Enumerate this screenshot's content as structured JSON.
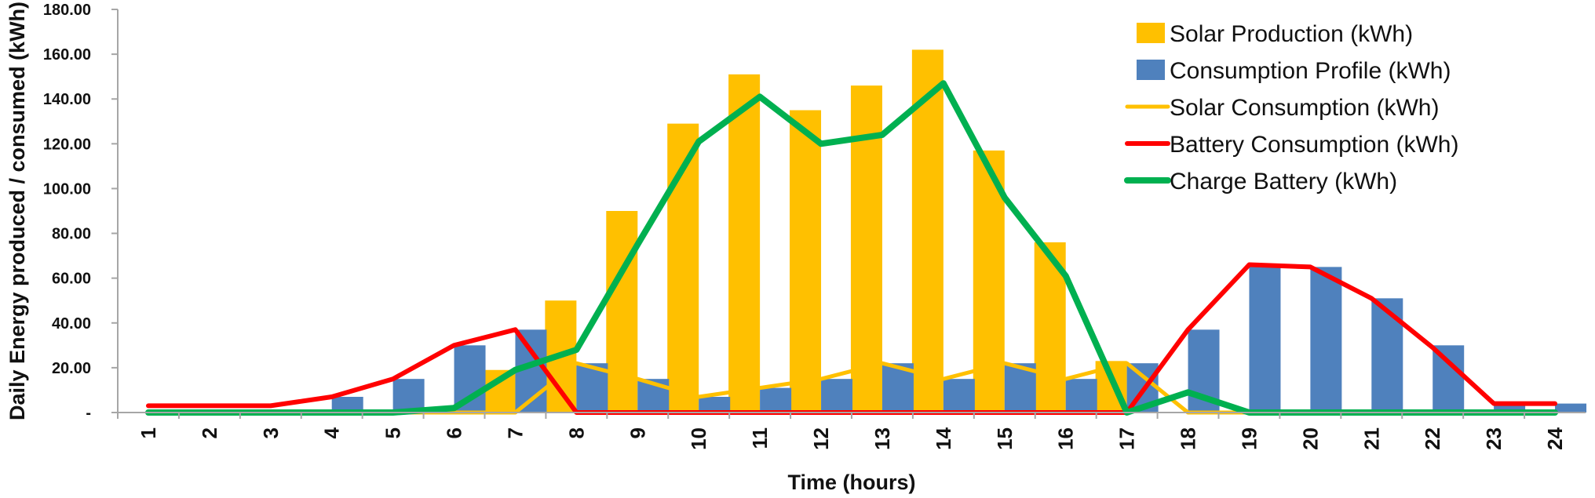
{
  "colors": {
    "solar_production": "#FFC000",
    "consumption_profile": "#4F81BD",
    "solar_consumption": "#FFC000",
    "battery_consumption": "#FF0000",
    "charge_battery": "#00B050",
    "axis": "#A6A6A6"
  },
  "chart_data": {
    "type": "bar",
    "title": "",
    "xlabel": "Time (hours)",
    "ylabel": "Daily Energy produced / consumed (kWh)",
    "ylim": [
      0,
      180
    ],
    "yticks": [
      {
        "value": 0,
        "label": "-"
      },
      {
        "value": 20,
        "label": "20.00"
      },
      {
        "value": 40,
        "label": "40.00"
      },
      {
        "value": 60,
        "label": "60.00"
      },
      {
        "value": 80,
        "label": "80.00"
      },
      {
        "value": 100,
        "label": "100.00"
      },
      {
        "value": 120,
        "label": "120.00"
      },
      {
        "value": 140,
        "label": "140.00"
      },
      {
        "value": 160,
        "label": "160.00"
      },
      {
        "value": 180,
        "label": "180.00"
      }
    ],
    "categories": [
      "1",
      "2",
      "3",
      "4",
      "5",
      "6",
      "7",
      "8",
      "9",
      "10",
      "11",
      "12",
      "13",
      "14",
      "15",
      "16",
      "17",
      "18",
      "19",
      "20",
      "21",
      "22",
      "23",
      "24"
    ],
    "grid": false,
    "legend_position": "top-right",
    "series": [
      {
        "name": "Solar Production (kWh)",
        "type": "bar",
        "color_key": "solar_production",
        "values": [
          0,
          0,
          0,
          0,
          0,
          0,
          19,
          50,
          90,
          129,
          151,
          135,
          146,
          162,
          117,
          76,
          23,
          0,
          0,
          0,
          0,
          0,
          0,
          0
        ]
      },
      {
        "name": "Consumption Profile (kWh)",
        "type": "bar",
        "color_key": "consumption_profile",
        "values": [
          1,
          1,
          1,
          7,
          15,
          30,
          37,
          22,
          15,
          7,
          11,
          15,
          22,
          15,
          22,
          15,
          22,
          37,
          66,
          65,
          51,
          30,
          4,
          4
        ]
      },
      {
        "name": "Solar Consumption (kWh)",
        "type": "line",
        "color_key": "solar_consumption",
        "values": [
          0,
          0,
          0,
          0,
          0,
          0,
          0,
          22,
          15,
          7,
          11,
          15,
          22,
          15,
          22,
          15,
          22,
          0,
          0,
          0,
          0,
          0,
          0,
          0
        ]
      },
      {
        "name": "Battery Consumption (kWh)",
        "type": "line",
        "color_key": "battery_consumption",
        "values": [
          3,
          3,
          3,
          7,
          15,
          30,
          37,
          0,
          0,
          0,
          0,
          0,
          0,
          0,
          0,
          0,
          0,
          37,
          66,
          65,
          51,
          29,
          4,
          4
        ]
      },
      {
        "name": "Charge Battery (kWh)",
        "type": "line",
        "color_key": "charge_battery",
        "values": [
          0,
          0,
          0,
          0,
          0,
          2,
          19,
          28,
          75,
          121,
          141,
          120,
          124,
          147,
          96,
          61,
          0,
          9,
          0,
          0,
          0,
          0,
          0,
          0
        ]
      }
    ]
  }
}
